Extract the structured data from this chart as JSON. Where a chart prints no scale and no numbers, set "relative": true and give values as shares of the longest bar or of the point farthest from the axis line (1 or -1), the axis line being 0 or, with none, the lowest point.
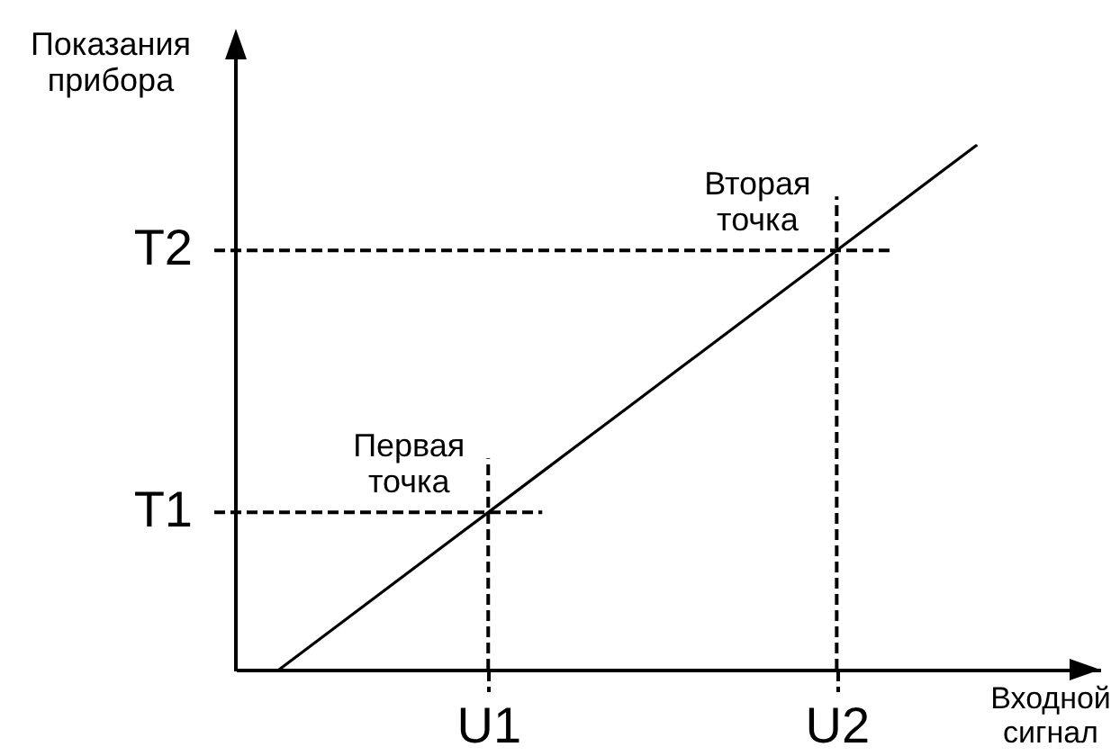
{
  "chart_data": {
    "type": "line",
    "relative": true,
    "xlabel": "Входной сигнал",
    "ylabel": "Показания прибора",
    "categories": [
      null,
      null,
      null,
      "U1",
      null,
      null,
      null,
      null,
      "U2",
      null,
      null
    ],
    "series": [
      {
        "color": "#000000",
        "values": [
          0,
          0.1,
          0.2,
          0.3,
          0.4,
          0.5,
          0.6,
          0.7,
          0.8,
          0.9,
          1
        ]
      }
    ],
    "ref_lines": [
      {
        "axis": "x",
        "value": "U1",
        "color": "#000000",
        "line_style": "dashed"
      },
      {
        "axis": "x",
        "value": "U2",
        "color": "#000000",
        "line_style": "dashed"
      },
      {
        "axis": "y",
        "value": 0.3,
        "label": "T1",
        "color": "#000000",
        "line_style": "dashed"
      },
      {
        "axis": "y",
        "value": 0.8,
        "label": "T2",
        "color": "#000000",
        "line_style": "dashed"
      }
    ],
    "annotations": [
      {
        "text": "Первая точка",
        "x": "U1",
        "y": 0.3
      },
      {
        "text": "Вторая точка",
        "x": "U2",
        "y": 0.8
      }
    ]
  }
}
